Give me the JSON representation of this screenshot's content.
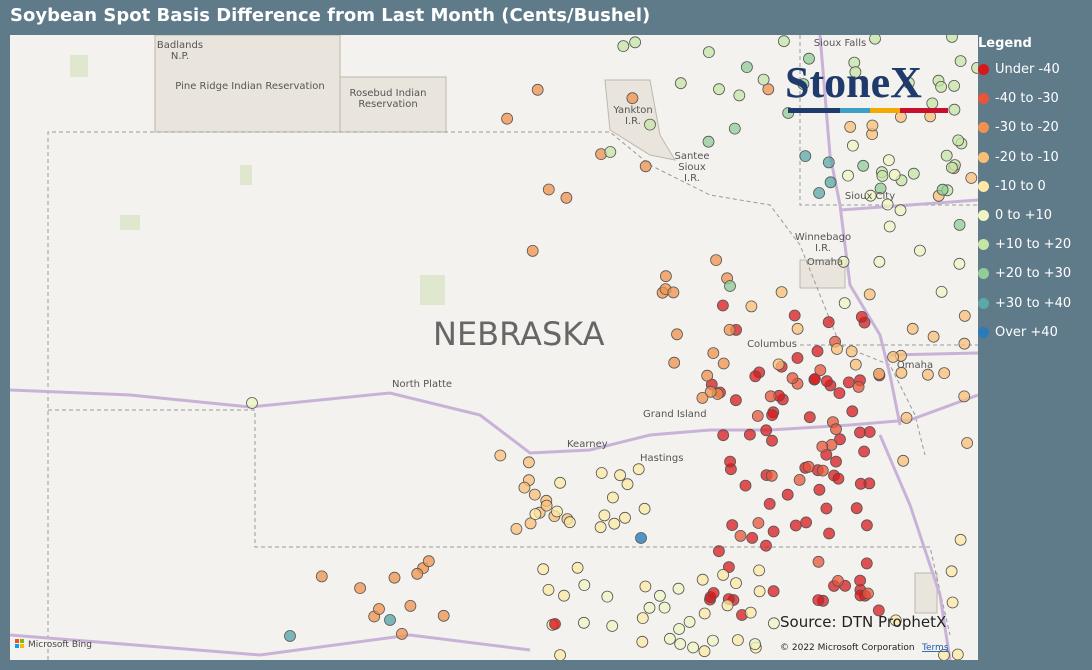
{
  "title": "Soybean Spot Basis Difference from Last Month (Cents/Bushel)",
  "legend": {
    "title": "Legend",
    "items": [
      {
        "label": "Under -40",
        "color": "#d7191c"
      },
      {
        "label": "-40 to -30",
        "color": "#e8553a"
      },
      {
        "label": "-30 to -20",
        "color": "#f0924e"
      },
      {
        "label": "-20 to -10",
        "color": "#f9bf76"
      },
      {
        "label": "-10 to 0",
        "color": "#fde9a4"
      },
      {
        "label": "0 to +10",
        "color": "#eef5c0"
      },
      {
        "label": "+10 to +20",
        "color": "#c6e5a5"
      },
      {
        "label": "+20 to +30",
        "color": "#92cc98"
      },
      {
        "label": "+30 to +40",
        "color": "#5aa8a8"
      },
      {
        "label": "Over +40",
        "color": "#2b7bba"
      }
    ]
  },
  "map": {
    "labels": {
      "badlands": "Badlands\nN.P.",
      "pine_ridge": "Pine Ridge Indian Reservation",
      "rosebud": "Rosebud Indian\nReservation",
      "yankton": "Yankton\nI.R.",
      "santee": "Santee\nSioux\nI.R.",
      "sioux_falls": "Sioux Falls",
      "sioux_city": "Sioux City",
      "winnebago": "Winnebago\nI.R.",
      "omaha_ir": "Omaha",
      "omaha": "Omaha",
      "columbus": "Columbus",
      "state": "NEBRASKA",
      "north_platte": "North Platte",
      "grand_island": "Grand Island",
      "kearney": "Kearney",
      "hastings": "Hastings"
    },
    "logo": "StoneX",
    "source": "Source: DTN ProphetX",
    "bing": "Microsoft Bing",
    "copyright": "© 2022 Microsoft Corporation",
    "terms": "Terms"
  }
}
